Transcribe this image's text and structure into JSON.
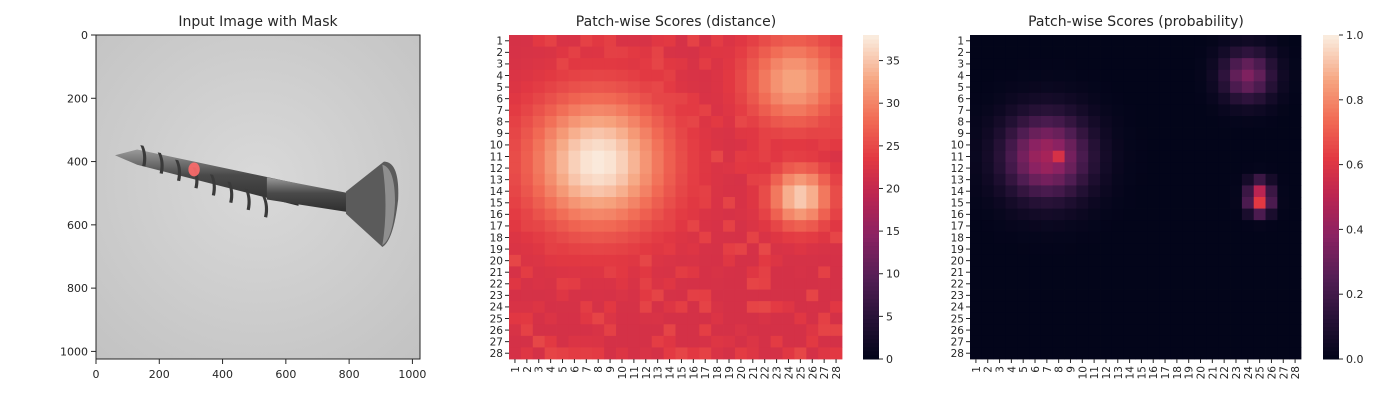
{
  "chart_data": [
    {
      "type": "image",
      "title": "Input Image with Mask",
      "xlim": [
        0,
        1024
      ],
      "ylim": [
        1024,
        0
      ],
      "x_ticks": [
        0,
        200,
        400,
        600,
        800,
        1000
      ],
      "y_ticks": [
        0,
        200,
        400,
        600,
        800,
        1000
      ],
      "content": "grayscale photo of a screw with red anomaly mask",
      "mask_color": "#ff6b6b"
    },
    {
      "type": "heatmap",
      "title": "Patch-wise Scores (distance)",
      "rows": 28,
      "cols": 28,
      "x_tick_labels": [
        "1",
        "2",
        "3",
        "4",
        "5",
        "6",
        "7",
        "8",
        "9",
        "10",
        "11",
        "12",
        "13",
        "14",
        "15",
        "16",
        "17",
        "18",
        "19",
        "20",
        "21",
        "22",
        "23",
        "24",
        "25",
        "26",
        "27",
        "28"
      ],
      "y_tick_labels": [
        "1",
        "2",
        "3",
        "4",
        "5",
        "6",
        "7",
        "8",
        "9",
        "10",
        "11",
        "12",
        "13",
        "14",
        "15",
        "16",
        "17",
        "18",
        "19",
        "20",
        "21",
        "22",
        "23",
        "24",
        "25",
        "26",
        "27",
        "28"
      ],
      "colorbar": {
        "min": 0,
        "max": 38,
        "ticks": [
          0,
          5,
          10,
          15,
          20,
          25,
          30,
          35
        ]
      },
      "colormap": "rocket",
      "base_value": 22,
      "hotspots": [
        {
          "row": 11.5,
          "col": 8,
          "radius": 4,
          "peak": 38
        },
        {
          "row": 4.5,
          "col": 24.5,
          "radius": 2.8,
          "peak": 33
        },
        {
          "row": 14.5,
          "col": 25,
          "radius": 1.8,
          "peak": 36
        },
        {
          "row": 10.5,
          "col": 3.5,
          "radius": 2,
          "peak": 28
        }
      ]
    },
    {
      "type": "heatmap",
      "title": "Patch-wise Scores (probability)",
      "rows": 28,
      "cols": 28,
      "x_tick_labels": [
        "1",
        "2",
        "3",
        "4",
        "5",
        "6",
        "7",
        "8",
        "9",
        "10",
        "11",
        "12",
        "13",
        "14",
        "15",
        "16",
        "17",
        "18",
        "19",
        "20",
        "21",
        "22",
        "23",
        "24",
        "25",
        "26",
        "27",
        "28"
      ],
      "y_tick_labels": [
        "1",
        "2",
        "3",
        "4",
        "5",
        "6",
        "7",
        "8",
        "9",
        "10",
        "11",
        "12",
        "13",
        "14",
        "15",
        "16",
        "17",
        "18",
        "19",
        "20",
        "21",
        "22",
        "23",
        "24",
        "25",
        "26",
        "27",
        "28"
      ],
      "colorbar": {
        "min": 0.0,
        "max": 1.0,
        "ticks": [
          "0.0",
          "0.2",
          "0.4",
          "0.6",
          "0.8",
          "1.0"
        ]
      },
      "colormap": "rocket",
      "base_value": 0.0,
      "hotspots": [
        {
          "row": 11,
          "col": 7,
          "radius": 2.5,
          "peak": 0.45
        },
        {
          "row": 11,
          "col": 8,
          "radius": 0.8,
          "peak": 0.58
        },
        {
          "row": 4,
          "col": 24,
          "radius": 1.5,
          "peak": 0.35
        },
        {
          "row": 14,
          "col": 25,
          "radius": 0.7,
          "peak": 0.5
        },
        {
          "row": 15,
          "col": 25,
          "radius": 0.7,
          "peak": 0.62
        }
      ]
    }
  ]
}
